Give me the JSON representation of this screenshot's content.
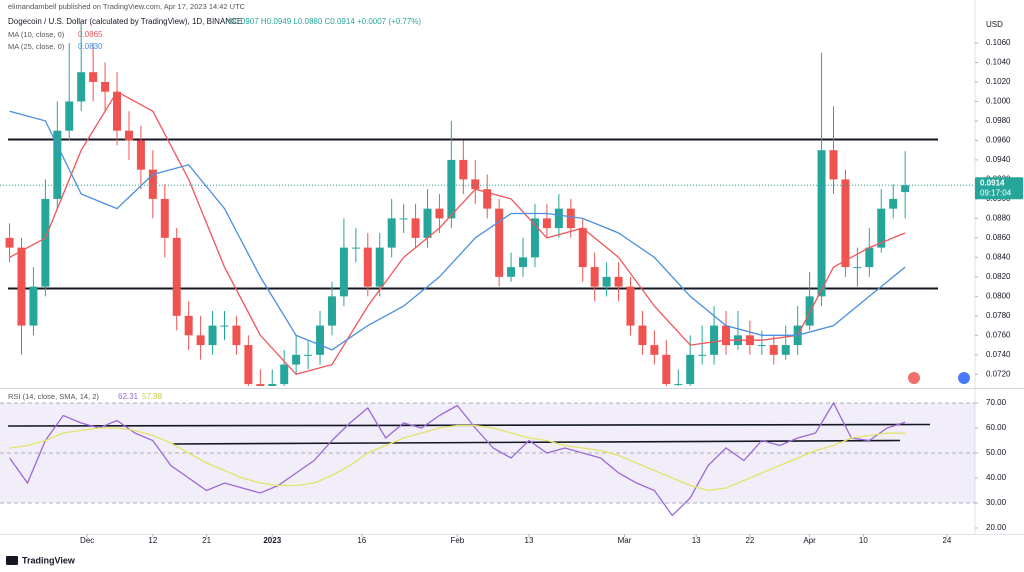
{
  "chart_data": [
    {
      "type": "candlestick",
      "publisher": "elimandambell published on TradingView.com, Apr 17, 2023 14:42 UTC",
      "title": "Dogecoin / U.S. Dollar (calculated by TradingView), 1D, BINANCE",
      "ohlc_text": "O0.0907 H0.0949 L0.0880 C0.0914 +0.0007 (+0.77%)",
      "currency": "USD",
      "price_label": "0.0914",
      "countdown": "09:17:04",
      "xlim": [
        -14.6,
        148.7
      ],
      "ylim": [
        0.0708,
        0.11
      ],
      "yticks": [
        {
          "value": 0.072,
          "label": "0.0720"
        },
        {
          "value": 0.074,
          "label": "0.0740"
        },
        {
          "value": 0.076,
          "label": "0.0760"
        },
        {
          "value": 0.078,
          "label": "0.0780"
        },
        {
          "value": 0.08,
          "label": "0.0800"
        },
        {
          "value": 0.082,
          "label": "0.0820"
        },
        {
          "value": 0.084,
          "label": "0.0840"
        },
        {
          "value": 0.086,
          "label": "0.0860"
        },
        {
          "value": 0.088,
          "label": "0.0880"
        },
        {
          "value": 0.09,
          "label": "0.0900"
        },
        {
          "value": 0.092,
          "label": "0.0920"
        },
        {
          "value": 0.094,
          "label": "0.0940"
        },
        {
          "value": 0.096,
          "label": "0.0960"
        },
        {
          "value": 0.098,
          "label": "0.0980"
        },
        {
          "value": 0.1,
          "label": "0.1000"
        },
        {
          "value": 0.102,
          "label": "0.1020"
        },
        {
          "value": 0.104,
          "label": "0.1040"
        },
        {
          "value": 0.106,
          "label": "0.1060"
        }
      ],
      "hlines": [
        0.0961,
        0.0808
      ],
      "series": [
        {
          "type": "candlestick",
          "up_color": "#26a69a",
          "down_color": "#ef5350",
          "x": [
            -13,
            -11,
            -9,
            -7,
            -5,
            -3,
            -1,
            1,
            3,
            5,
            7,
            9,
            11,
            13,
            15,
            17,
            19,
            21,
            23,
            25,
            27,
            29,
            31,
            33,
            35,
            37,
            39,
            41,
            43,
            45,
            47,
            49,
            51,
            53,
            55,
            57,
            59,
            61,
            63,
            65,
            67,
            69,
            71,
            73,
            75,
            77,
            79,
            81,
            83,
            85,
            87,
            89,
            91,
            93,
            95,
            97,
            99,
            101,
            103,
            105,
            107,
            109,
            111,
            113,
            115,
            117,
            119,
            121,
            123,
            125,
            127,
            129,
            131,
            133,
            135,
            137
          ],
          "open": [
            0.086,
            0.085,
            0.077,
            0.081,
            0.09,
            0.097,
            0.1,
            0.103,
            0.102,
            0.101,
            0.097,
            0.096,
            0.093,
            0.09,
            0.086,
            0.078,
            0.076,
            0.075,
            0.077,
            0.077,
            0.075,
            0.071,
            0.07,
            0.071,
            0.073,
            0.074,
            0.074,
            0.077,
            0.08,
            0.085,
            0.085,
            0.081,
            0.085,
            0.088,
            0.088,
            0.086,
            0.089,
            0.088,
            0.094,
            0.092,
            0.091,
            0.089,
            0.082,
            0.083,
            0.084,
            0.088,
            0.087,
            0.089,
            0.087,
            0.083,
            0.081,
            0.082,
            0.081,
            0.077,
            0.075,
            0.074,
            0.071,
            0.071,
            0.074,
            0.074,
            0.077,
            0.075,
            0.076,
            0.075,
            0.075,
            0.074,
            0.075,
            0.077,
            0.08,
            0.095,
            0.092,
            0.083,
            0.083,
            0.085,
            0.089,
            0.0907
          ],
          "high": [
            0.0875,
            0.086,
            0.083,
            0.092,
            0.1,
            0.106,
            0.108,
            0.106,
            0.104,
            0.103,
            0.099,
            0.0975,
            0.095,
            0.0915,
            0.087,
            0.0795,
            0.078,
            0.0785,
            0.0785,
            0.078,
            0.076,
            0.0725,
            0.0725,
            0.0745,
            0.076,
            0.0755,
            0.0785,
            0.0815,
            0.088,
            0.087,
            0.0865,
            0.0865,
            0.09,
            0.0895,
            0.0895,
            0.091,
            0.0905,
            0.098,
            0.096,
            0.094,
            0.0925,
            0.09,
            0.0845,
            0.086,
            0.0895,
            0.0895,
            0.0905,
            0.09,
            0.088,
            0.0845,
            0.0835,
            0.0835,
            0.082,
            0.0785,
            0.0765,
            0.0755,
            0.0725,
            0.076,
            0.077,
            0.079,
            0.0785,
            0.0785,
            0.0775,
            0.0765,
            0.076,
            0.077,
            0.079,
            0.0825,
            0.105,
            0.0995,
            0.093,
            0.085,
            0.087,
            0.091,
            0.0915,
            0.0949
          ],
          "low": [
            0.0835,
            0.074,
            0.076,
            0.08,
            0.089,
            0.096,
            0.099,
            0.1,
            0.099,
            0.0955,
            0.094,
            0.091,
            0.088,
            0.084,
            0.0765,
            0.0745,
            0.0735,
            0.074,
            0.0755,
            0.074,
            0.07,
            0.069,
            0.0695,
            0.07,
            0.072,
            0.0725,
            0.073,
            0.076,
            0.079,
            0.0835,
            0.08,
            0.08,
            0.084,
            0.0865,
            0.085,
            0.085,
            0.0865,
            0.087,
            0.0905,
            0.0895,
            0.088,
            0.081,
            0.0815,
            0.082,
            0.083,
            0.086,
            0.086,
            0.086,
            0.0815,
            0.0795,
            0.08,
            0.0795,
            0.076,
            0.074,
            0.073,
            0.07,
            0.07,
            0.07,
            0.073,
            0.073,
            0.074,
            0.0745,
            0.074,
            0.074,
            0.073,
            0.0735,
            0.074,
            0.0765,
            0.079,
            0.0905,
            0.082,
            0.081,
            0.082,
            0.0845,
            0.088,
            0.088
          ],
          "close": [
            0.085,
            0.077,
            0.081,
            0.09,
            0.097,
            0.1,
            0.103,
            0.102,
            0.101,
            0.097,
            0.096,
            0.093,
            0.09,
            0.086,
            0.078,
            0.076,
            0.075,
            0.077,
            0.077,
            0.075,
            0.071,
            0.07,
            0.071,
            0.073,
            0.074,
            0.074,
            0.077,
            0.08,
            0.085,
            0.085,
            0.081,
            0.085,
            0.088,
            0.088,
            0.086,
            0.089,
            0.088,
            0.094,
            0.092,
            0.091,
            0.089,
            0.082,
            0.083,
            0.084,
            0.088,
            0.087,
            0.089,
            0.087,
            0.083,
            0.081,
            0.082,
            0.081,
            0.077,
            0.075,
            0.074,
            0.071,
            0.071,
            0.074,
            0.074,
            0.077,
            0.075,
            0.076,
            0.075,
            0.075,
            0.074,
            0.075,
            0.077,
            0.08,
            0.095,
            0.092,
            0.083,
            0.083,
            0.085,
            0.089,
            0.09,
            0.0914
          ]
        },
        {
          "type": "line",
          "name": "MA (10, close, 0)",
          "last_label": "0.0865",
          "color": "#f0555b",
          "x": [
            -13,
            -7,
            -1,
            5,
            11,
            17,
            23,
            29,
            35,
            41,
            47,
            53,
            59,
            65,
            71,
            77,
            83,
            89,
            95,
            101,
            107,
            113,
            119,
            125,
            131,
            137
          ],
          "values": [
            0.084,
            0.086,
            0.095,
            0.101,
            0.099,
            0.092,
            0.083,
            0.076,
            0.072,
            0.073,
            0.079,
            0.084,
            0.087,
            0.091,
            0.09,
            0.086,
            0.087,
            0.084,
            0.079,
            0.075,
            0.0755,
            0.0755,
            0.076,
            0.083,
            0.085,
            0.0865
          ]
        },
        {
          "type": "line",
          "name": "MA (25, close, 0)",
          "last_label": "0.0830",
          "color": "#4a8fe0",
          "x": [
            -13,
            -7,
            -1,
            5,
            11,
            17,
            23,
            29,
            35,
            41,
            47,
            53,
            59,
            65,
            71,
            77,
            83,
            89,
            95,
            101,
            107,
            113,
            119,
            125,
            131,
            137
          ],
          "values": [
            0.099,
            0.098,
            0.0905,
            0.089,
            0.0925,
            0.0935,
            0.089,
            0.082,
            0.076,
            0.0745,
            0.077,
            0.079,
            0.082,
            0.086,
            0.0885,
            0.0885,
            0.088,
            0.0865,
            0.084,
            0.08,
            0.077,
            0.076,
            0.076,
            0.077,
            0.08,
            0.083
          ]
        }
      ]
    },
    {
      "type": "line",
      "title": "RSI (14, close, SMA, 14, 2)",
      "xlim": [
        -14.6,
        148.7
      ],
      "ylim": [
        17.6,
        74.4
      ],
      "yticks": [
        {
          "value": 20,
          "label": "20.00"
        },
        {
          "value": 30,
          "label": "30.00"
        },
        {
          "value": 40,
          "label": "40.00"
        },
        {
          "value": 50,
          "label": "50.00"
        },
        {
          "value": 60,
          "label": "60.00"
        },
        {
          "value": 70,
          "label": "70.00"
        }
      ],
      "levels": [
        30,
        50,
        70
      ],
      "xticks": [
        {
          "value": 0,
          "label": "Dec"
        },
        {
          "value": 11,
          "label": "12"
        },
        {
          "value": 20,
          "label": "21"
        },
        {
          "value": 31,
          "label": "2023"
        },
        {
          "value": 46,
          "label": "16"
        },
        {
          "value": 62,
          "label": "Feb"
        },
        {
          "value": 74,
          "label": "13"
        },
        {
          "value": 90,
          "label": "Mar"
        },
        {
          "value": 102,
          "label": "13"
        },
        {
          "value": 111,
          "label": "22"
        },
        {
          "value": 121,
          "label": "Apr"
        },
        {
          "value": 130,
          "label": "10"
        },
        {
          "value": 144,
          "label": "24"
        }
      ],
      "series": [
        {
          "type": "line",
          "name": "RSI",
          "last_label": "62.31",
          "color": "#9a68d8",
          "x": [
            -13,
            -10,
            -7,
            -4,
            -1,
            2,
            5,
            8,
            11,
            14,
            17,
            20,
            23,
            26,
            29,
            32,
            35,
            38,
            41,
            44,
            47,
            50,
            53,
            56,
            59,
            62,
            65,
            68,
            71,
            74,
            77,
            80,
            83,
            86,
            89,
            92,
            95,
            98,
            101,
            104,
            107,
            110,
            113,
            116,
            119,
            122,
            125,
            128,
            131,
            134,
            137
          ],
          "values": [
            48,
            38,
            55,
            65,
            62,
            60,
            63,
            58,
            55,
            45,
            40,
            35,
            38,
            36,
            34,
            37,
            42,
            47,
            55,
            62,
            68,
            56,
            62,
            60,
            65,
            69,
            60,
            52,
            48,
            55,
            50,
            52,
            50,
            48,
            42,
            38,
            35,
            25,
            32,
            45,
            52,
            47,
            55,
            53,
            56,
            58,
            70,
            56,
            55,
            60,
            62.31
          ]
        },
        {
          "type": "line",
          "name": "SMA",
          "last_label": "57.88",
          "color": "#e3e36a",
          "x": [
            -13,
            -10,
            -7,
            -4,
            -1,
            2,
            5,
            8,
            11,
            14,
            17,
            20,
            23,
            26,
            29,
            32,
            35,
            38,
            41,
            44,
            47,
            50,
            53,
            56,
            59,
            62,
            65,
            68,
            71,
            74,
            77,
            80,
            83,
            86,
            89,
            92,
            95,
            98,
            101,
            104,
            107,
            110,
            113,
            116,
            119,
            122,
            125,
            128,
            131,
            134,
            137
          ],
          "values": [
            52,
            53,
            55,
            58,
            59,
            60,
            60,
            59,
            57,
            54,
            50,
            46,
            43,
            40,
            38,
            37,
            37,
            38,
            41,
            45,
            50,
            53,
            56,
            58,
            60,
            61,
            61,
            60,
            58,
            56,
            55,
            53,
            52,
            51,
            49,
            46,
            43,
            40,
            37,
            35,
            36,
            39,
            42,
            45,
            48,
            51,
            53,
            56,
            57,
            58,
            57.88
          ]
        }
      ]
    }
  ],
  "footer": "TradingView"
}
